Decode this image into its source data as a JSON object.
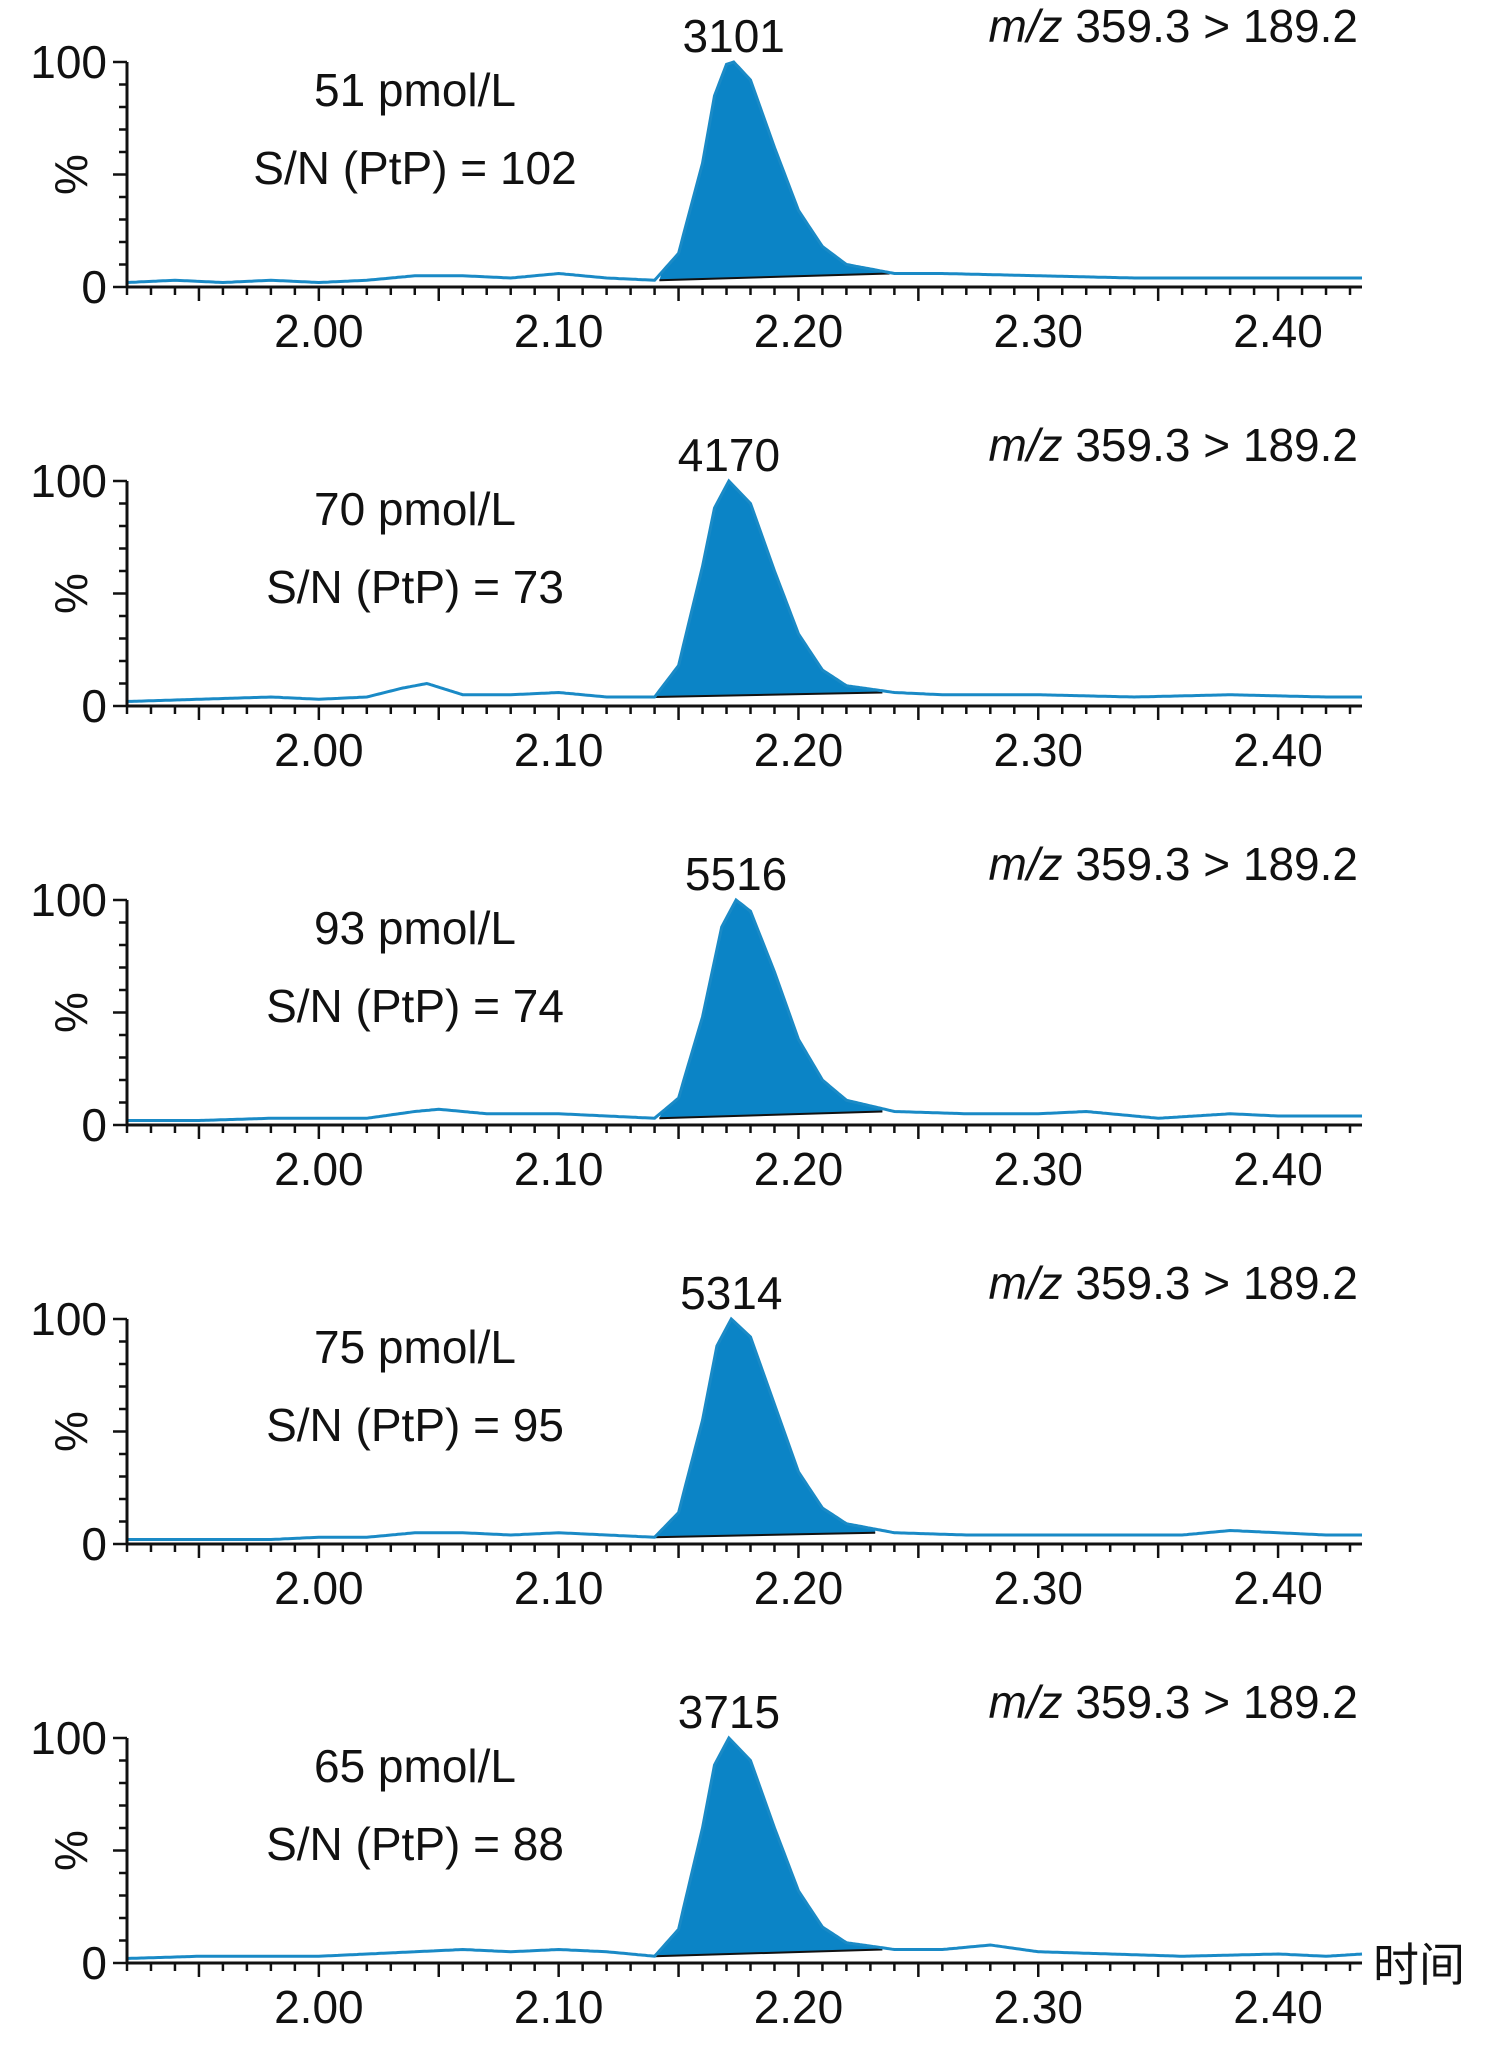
{
  "figure": {
    "time_label": "时间",
    "transition_italic": "m/z",
    "transition_value": " 359.3 > 189.2",
    "colors": {
      "peak_fill": "#0b84c6",
      "trace": "#1a8ac6",
      "axis": "#111111",
      "baseline": "#111111"
    }
  },
  "chart_data": [
    {
      "type": "line",
      "title": "51 pmol/L",
      "subtitle": "S/N (PtP) = 102",
      "peak_label": "3101",
      "ylabel": "%",
      "xlim": [
        1.92,
        2.435
      ],
      "ylim": [
        0,
        100
      ],
      "x_ticks": [
        "2.00",
        "2.10",
        "2.20",
        "2.30",
        "2.40"
      ],
      "y_ticks": [
        "0",
        "100"
      ],
      "peak": {
        "apex_x": 2.173,
        "apex_y": 100,
        "start_x": 2.142,
        "end_x": 2.238,
        "baseline_start_y": 3.0,
        "baseline_end_y": 6.0
      },
      "series": [
        {
          "x": [
            1.92,
            1.94,
            1.96,
            1.98,
            2.0,
            2.02,
            2.04,
            2.06,
            2.08,
            2.1,
            2.12,
            2.14,
            2.15,
            2.16,
            2.165,
            2.17,
            2.173,
            2.18,
            2.19,
            2.2,
            2.21,
            2.22,
            2.24,
            2.26,
            2.3,
            2.34,
            2.38,
            2.42,
            2.435
          ],
          "y": [
            2,
            3,
            2,
            3,
            2,
            3,
            5,
            5,
            4,
            6,
            4,
            3,
            15,
            55,
            85,
            99,
            100,
            92,
            62,
            34,
            18,
            10,
            6,
            6,
            5,
            4,
            4,
            4,
            4
          ]
        }
      ]
    },
    {
      "type": "line",
      "title": "70 pmol/L",
      "subtitle": "S/N (PtP) = 73",
      "peak_label": "4170",
      "ylabel": "%",
      "xlim": [
        1.92,
        2.435
      ],
      "ylim": [
        0,
        100
      ],
      "x_ticks": [
        "2.00",
        "2.10",
        "2.20",
        "2.30",
        "2.40"
      ],
      "y_ticks": [
        "0",
        "100"
      ],
      "peak": {
        "apex_x": 2.171,
        "apex_y": 100,
        "start_x": 2.14,
        "end_x": 2.235,
        "baseline_start_y": 4.0,
        "baseline_end_y": 6.0
      },
      "series": [
        {
          "x": [
            1.92,
            1.95,
            1.98,
            2.0,
            2.02,
            2.035,
            2.045,
            2.06,
            2.08,
            2.1,
            2.12,
            2.14,
            2.15,
            2.16,
            2.165,
            2.171,
            2.18,
            2.19,
            2.2,
            2.21,
            2.22,
            2.24,
            2.26,
            2.3,
            2.34,
            2.38,
            2.42,
            2.435
          ],
          "y": [
            2,
            3,
            4,
            3,
            4,
            8,
            10,
            5,
            5,
            6,
            4,
            4,
            18,
            62,
            88,
            100,
            90,
            60,
            32,
            16,
            9,
            6,
            5,
            5,
            4,
            5,
            4,
            4
          ]
        }
      ]
    },
    {
      "type": "line",
      "title": "93 pmol/L",
      "subtitle": "S/N (PtP) = 74",
      "peak_label": "5516",
      "ylabel": "%",
      "xlim": [
        1.92,
        2.435
      ],
      "ylim": [
        0,
        100
      ],
      "x_ticks": [
        "2.00",
        "2.10",
        "2.20",
        "2.30",
        "2.40"
      ],
      "y_ticks": [
        "0",
        "100"
      ],
      "peak": {
        "apex_x": 2.174,
        "apex_y": 100,
        "start_x": 2.142,
        "end_x": 2.235,
        "baseline_start_y": 3.0,
        "baseline_end_y": 6.0
      },
      "series": [
        {
          "x": [
            1.92,
            1.95,
            1.98,
            2.0,
            2.02,
            2.04,
            2.05,
            2.07,
            2.1,
            2.12,
            2.14,
            2.15,
            2.16,
            2.168,
            2.174,
            2.18,
            2.19,
            2.2,
            2.21,
            2.22,
            2.24,
            2.27,
            2.3,
            2.32,
            2.35,
            2.38,
            2.4,
            2.42,
            2.435
          ],
          "y": [
            2,
            2,
            3,
            3,
            3,
            6,
            7,
            5,
            5,
            4,
            3,
            12,
            48,
            88,
            100,
            95,
            68,
            38,
            20,
            11,
            6,
            5,
            5,
            6,
            3,
            5,
            4,
            4,
            4
          ]
        }
      ]
    },
    {
      "type": "line",
      "title": "75 pmol/L",
      "subtitle": "S/N (PtP) = 95",
      "peak_label": "5314",
      "ylabel": "%",
      "xlim": [
        1.92,
        2.435
      ],
      "ylim": [
        0,
        100
      ],
      "x_ticks": [
        "2.00",
        "2.10",
        "2.20",
        "2.30",
        "2.40"
      ],
      "y_ticks": [
        "0",
        "100"
      ],
      "peak": {
        "apex_x": 2.172,
        "apex_y": 100,
        "start_x": 2.14,
        "end_x": 2.232,
        "baseline_start_y": 3.0,
        "baseline_end_y": 5.0
      },
      "series": [
        {
          "x": [
            1.92,
            1.95,
            1.98,
            2.0,
            2.02,
            2.04,
            2.06,
            2.08,
            2.1,
            2.12,
            2.14,
            2.15,
            2.16,
            2.166,
            2.172,
            2.18,
            2.19,
            2.2,
            2.21,
            2.22,
            2.24,
            2.27,
            2.3,
            2.33,
            2.36,
            2.38,
            2.4,
            2.42,
            2.435
          ],
          "y": [
            2,
            2,
            2,
            3,
            3,
            5,
            5,
            4,
            5,
            4,
            3,
            14,
            55,
            88,
            100,
            92,
            62,
            32,
            16,
            9,
            5,
            4,
            4,
            4,
            4,
            6,
            5,
            4,
            4
          ]
        }
      ]
    },
    {
      "type": "line",
      "title": "65 pmol/L",
      "subtitle": "S/N (PtP) = 88",
      "peak_label": "3715",
      "ylabel": "%",
      "xlim": [
        1.92,
        2.435
      ],
      "ylim": [
        0,
        100
      ],
      "x_ticks": [
        "2.00",
        "2.10",
        "2.20",
        "2.30",
        "2.40"
      ],
      "y_ticks": [
        "0",
        "100"
      ],
      "peak": {
        "apex_x": 2.171,
        "apex_y": 100,
        "start_x": 2.14,
        "end_x": 2.235,
        "baseline_start_y": 3.0,
        "baseline_end_y": 6.0
      },
      "series": [
        {
          "x": [
            1.92,
            1.95,
            1.98,
            2.0,
            2.02,
            2.04,
            2.06,
            2.08,
            2.1,
            2.12,
            2.14,
            2.15,
            2.16,
            2.165,
            2.171,
            2.18,
            2.19,
            2.2,
            2.21,
            2.22,
            2.24,
            2.26,
            2.28,
            2.3,
            2.33,
            2.36,
            2.4,
            2.42,
            2.435
          ],
          "y": [
            2,
            3,
            3,
            3,
            4,
            5,
            6,
            5,
            6,
            5,
            3,
            15,
            60,
            88,
            100,
            90,
            60,
            32,
            16,
            9,
            6,
            6,
            8,
            5,
            4,
            3,
            4,
            3,
            4
          ]
        }
      ]
    }
  ]
}
